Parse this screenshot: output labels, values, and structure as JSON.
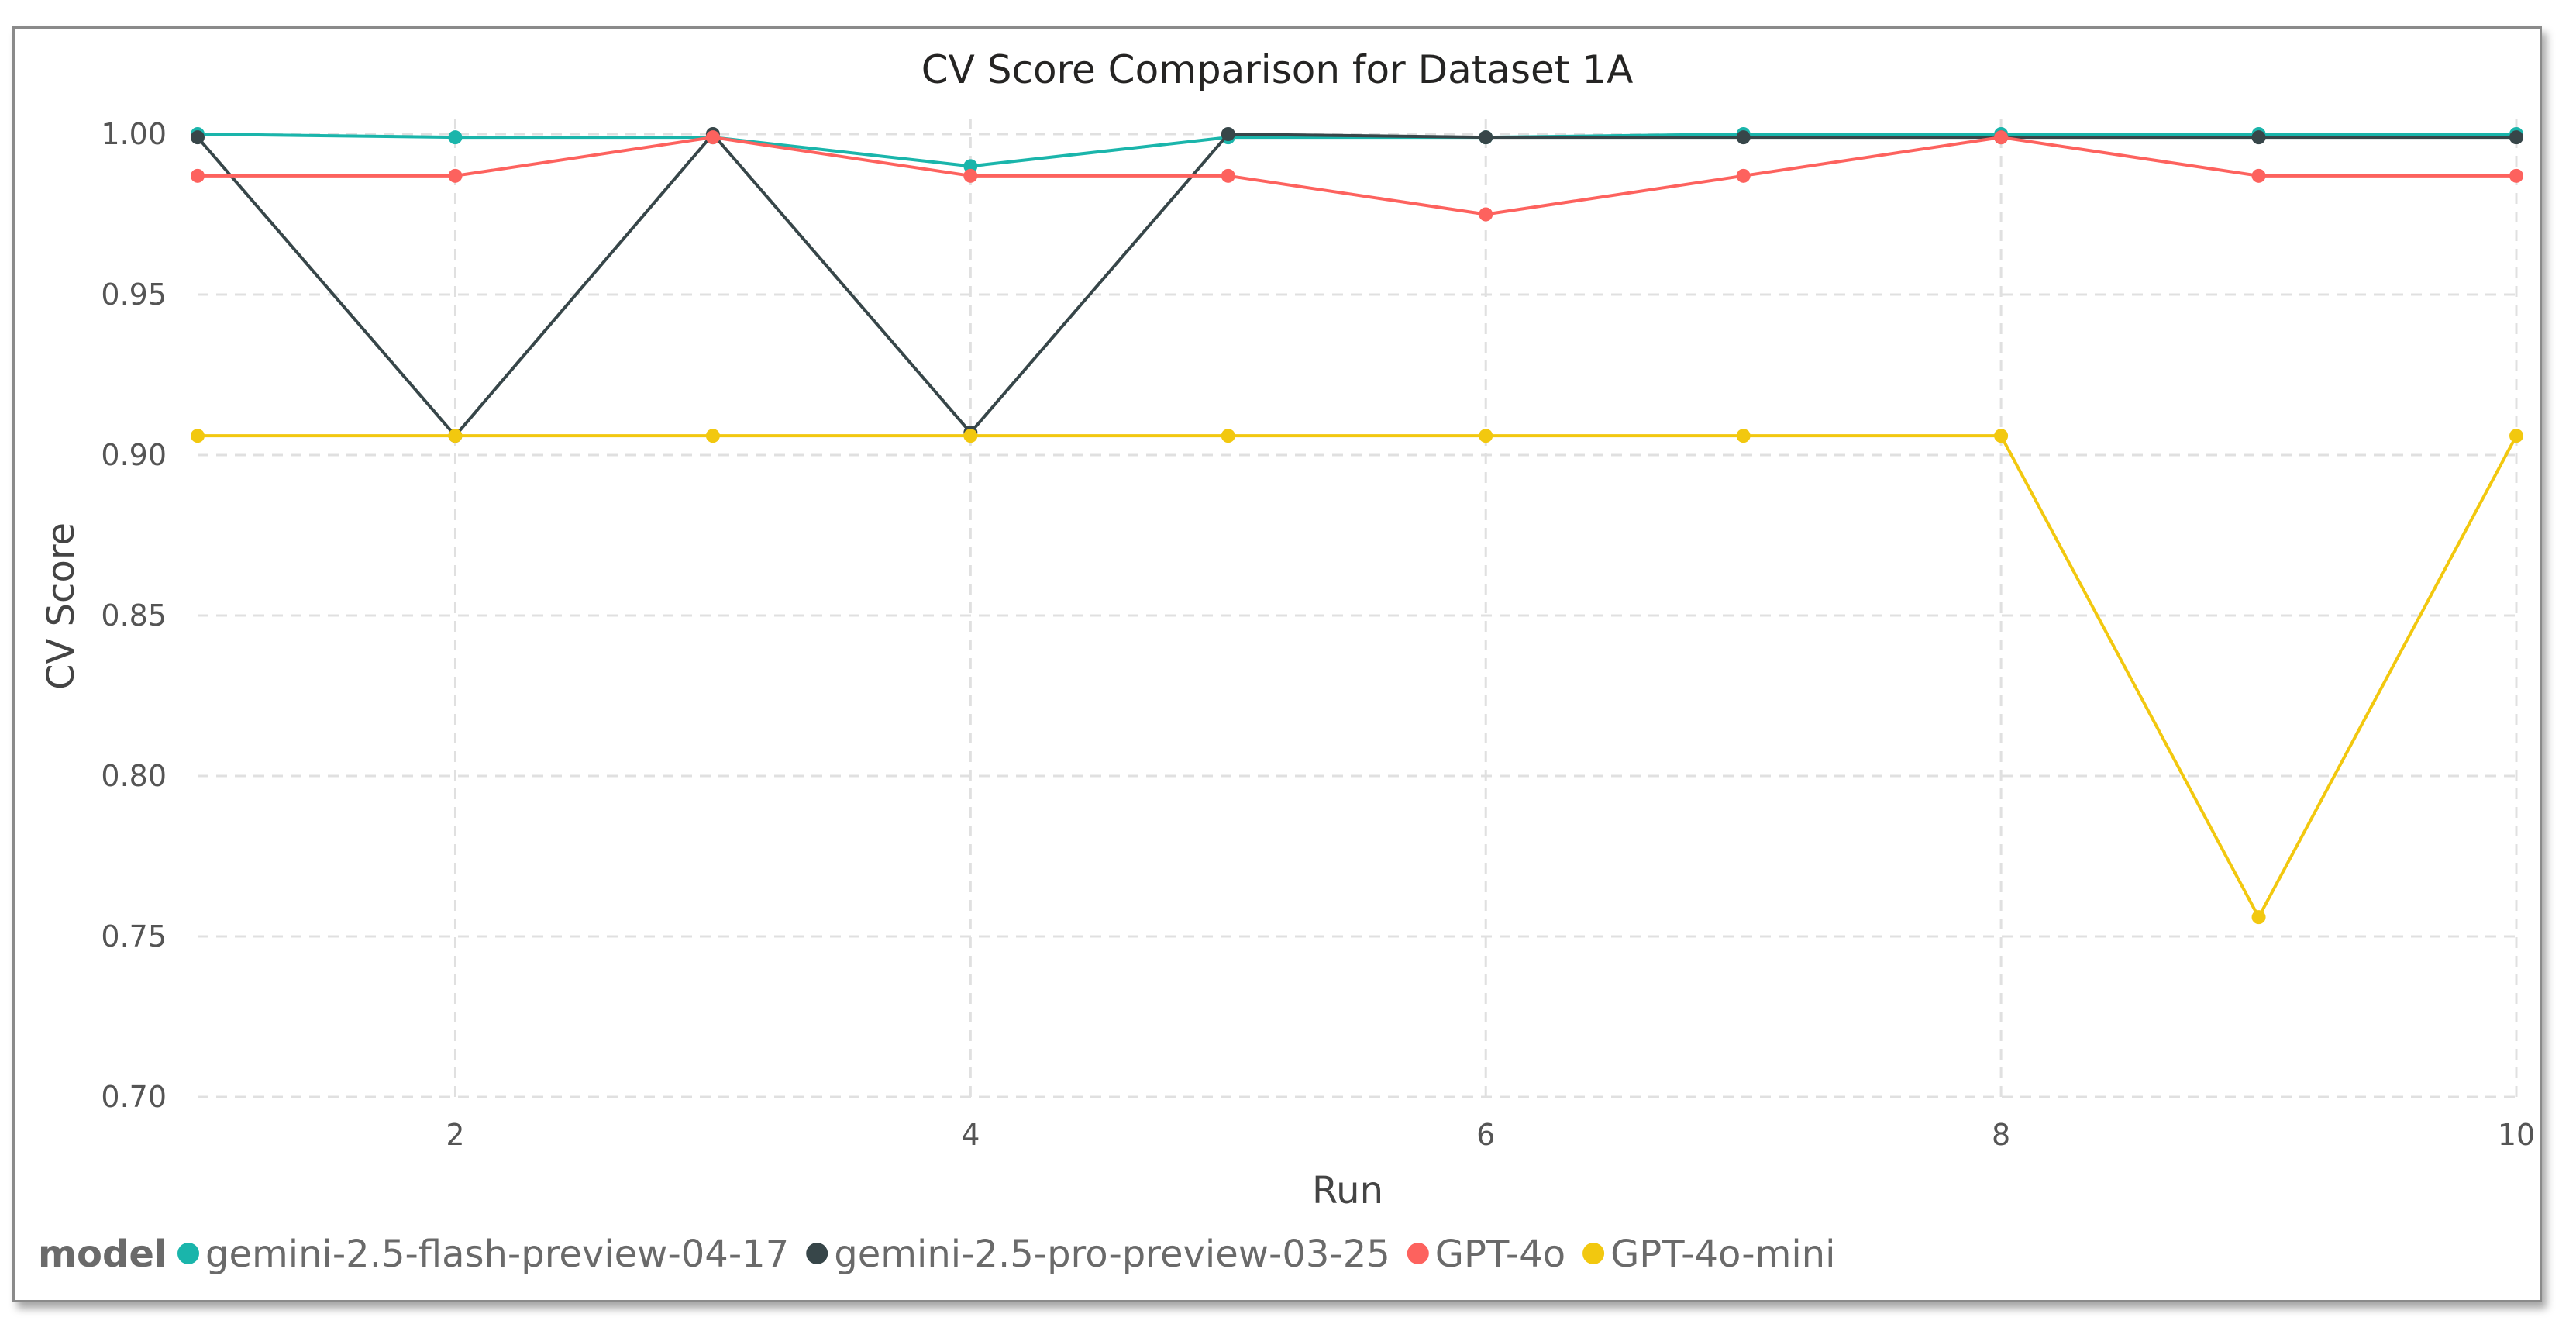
{
  "chart_data": {
    "type": "line",
    "title": "CV Score Comparison for Dataset 1A",
    "xlabel": "Run",
    "ylabel": "CV Score",
    "x": [
      1,
      2,
      3,
      4,
      5,
      6,
      7,
      8,
      9,
      10
    ],
    "x_ticks": [
      "2",
      "4",
      "6",
      "8",
      "10"
    ],
    "x_tick_values": [
      2,
      4,
      6,
      8,
      10
    ],
    "y_ticks": [
      "0.70",
      "0.75",
      "0.80",
      "0.85",
      "0.90",
      "0.95",
      "1.00"
    ],
    "y_tick_values": [
      0.7,
      0.75,
      0.8,
      0.85,
      0.9,
      0.95,
      1.0
    ],
    "xlim": [
      1,
      10
    ],
    "ylim": [
      0.7,
      1.0
    ],
    "grid": true,
    "legend_title": "model",
    "legend_position": "bottom-left",
    "series": [
      {
        "name": "gemini-2.5-flash-preview-04-17",
        "color": "#1ab5ab",
        "values": [
          1.0,
          0.999,
          0.999,
          0.99,
          0.999,
          0.999,
          1.0,
          1.0,
          1.0,
          1.0
        ]
      },
      {
        "name": "gemini-2.5-pro-preview-03-25",
        "color": "#374649",
        "values": [
          0.999,
          0.906,
          1.0,
          0.907,
          1.0,
          0.999,
          0.999,
          0.999,
          0.999,
          0.999
        ]
      },
      {
        "name": "GPT-4o",
        "color": "#fd625e",
        "values": [
          0.987,
          0.987,
          0.999,
          0.987,
          0.987,
          0.975,
          0.987,
          0.999,
          0.987,
          0.987
        ]
      },
      {
        "name": "GPT-4o-mini",
        "color": "#f2c80f",
        "values": [
          0.906,
          0.906,
          0.906,
          0.906,
          0.906,
          0.906,
          0.906,
          0.906,
          0.756,
          0.906
        ]
      }
    ]
  }
}
